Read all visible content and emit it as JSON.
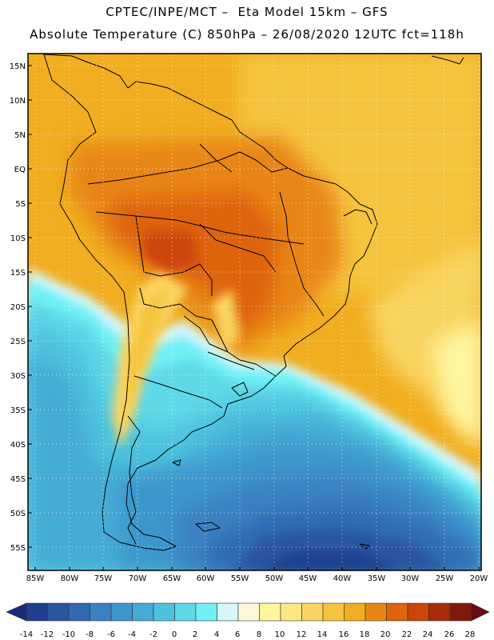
{
  "header": {
    "line1": "CPTEC/INPE/MCT –  Eta Model 15km – GFS",
    "line2": "Absolute Temperature (C) 850hPa – 26/08/2020 12UTC fct=118h"
  },
  "map": {
    "lat_labels": [
      "15N",
      "10N",
      "5N",
      "EQ",
      "5S",
      "10S",
      "15S",
      "20S",
      "25S",
      "30S",
      "35S",
      "40S",
      "45S",
      "50S",
      "55S"
    ],
    "lon_labels": [
      "85W",
      "80W",
      "75W",
      "70W",
      "65W",
      "60W",
      "55W",
      "50W",
      "45W",
      "40W",
      "35W",
      "30W",
      "25W",
      "20W"
    ]
  },
  "colorbar": {
    "ticks": [
      "-14",
      "-12",
      "-10",
      "-8",
      "-6",
      "-4",
      "-2",
      "0",
      "2",
      "4",
      "6",
      "8",
      "10",
      "12",
      "14",
      "16",
      "18",
      "20",
      "22",
      "24",
      "26",
      "28"
    ],
    "colors": [
      "#1f3f8f",
      "#2a55a0",
      "#2f6ab2",
      "#3b82c2",
      "#3d97cc",
      "#45acd6",
      "#4dc2de",
      "#5fd8e8",
      "#70f0f5",
      "#d6f6fb",
      "#fff8d8",
      "#fef5a0",
      "#fbe682",
      "#f9d460",
      "#f5c43c",
      "#f1ae20",
      "#e88612",
      "#de640a",
      "#cc4407",
      "#a82c08",
      "#7e1a0c"
    ],
    "min_color": "#1a2a7a",
    "max_color": "#6a0a18"
  }
}
